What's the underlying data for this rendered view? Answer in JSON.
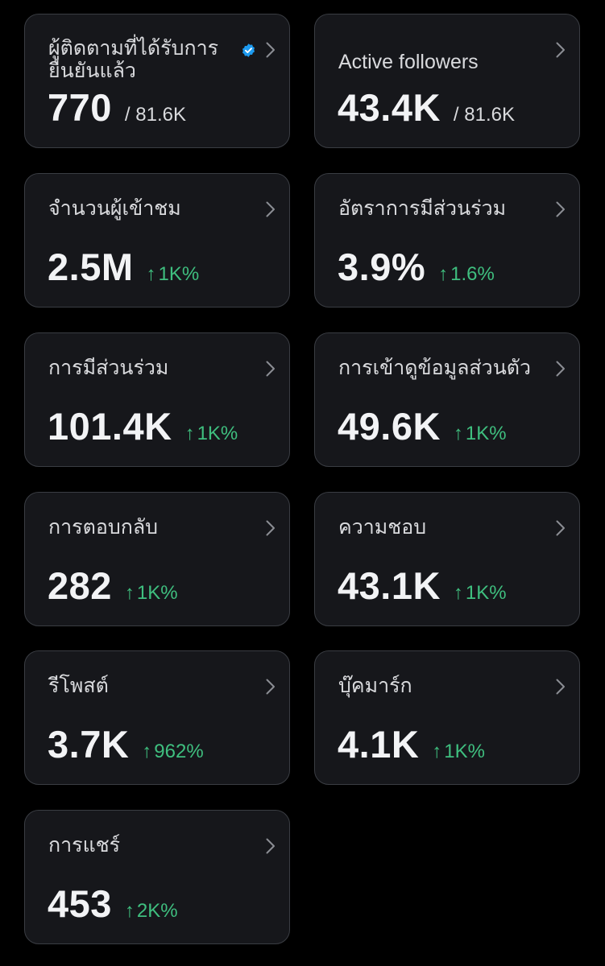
{
  "cards": [
    {
      "label": "ผู้ติดตามที่ได้รับการยืนยันแล้ว",
      "value": "770",
      "total": "/ 81.6K",
      "verified": true
    },
    {
      "label": "Active followers",
      "value": "43.4K",
      "total": "/ 81.6K"
    },
    {
      "label": "จำนวนผู้เข้าชม",
      "value": "2.5M",
      "change": "1K%"
    },
    {
      "label": "อัตราการมีส่วนร่วม",
      "value": "3.9%",
      "change": "1.6%"
    },
    {
      "label": "การมีส่วนร่วม",
      "value": "101.4K",
      "change": "1K%"
    },
    {
      "label": "การเข้าดูข้อมูลส่วนตัว",
      "value": "49.6K",
      "change": "1K%"
    },
    {
      "label": "การตอบกลับ",
      "value": "282",
      "change": "1K%"
    },
    {
      "label": "ความชอบ",
      "value": "43.1K",
      "change": "1K%"
    },
    {
      "label": "รีโพสต์",
      "value": "3.7K",
      "change": "962%"
    },
    {
      "label": "บุ๊คมาร์ก",
      "value": "4.1K",
      "change": "1K%"
    },
    {
      "label": "การแชร์",
      "value": "453",
      "change": "2K%"
    }
  ],
  "icons": {
    "chevron": "chevron-right-icon",
    "verified": "verified-badge-icon",
    "trend": "arrow-up-icon"
  },
  "colors": {
    "background": "#000000",
    "card": "#16171b",
    "card_border": "#3a3d43",
    "positive": "#3fbf7f",
    "verified": "#1d9bf0"
  }
}
